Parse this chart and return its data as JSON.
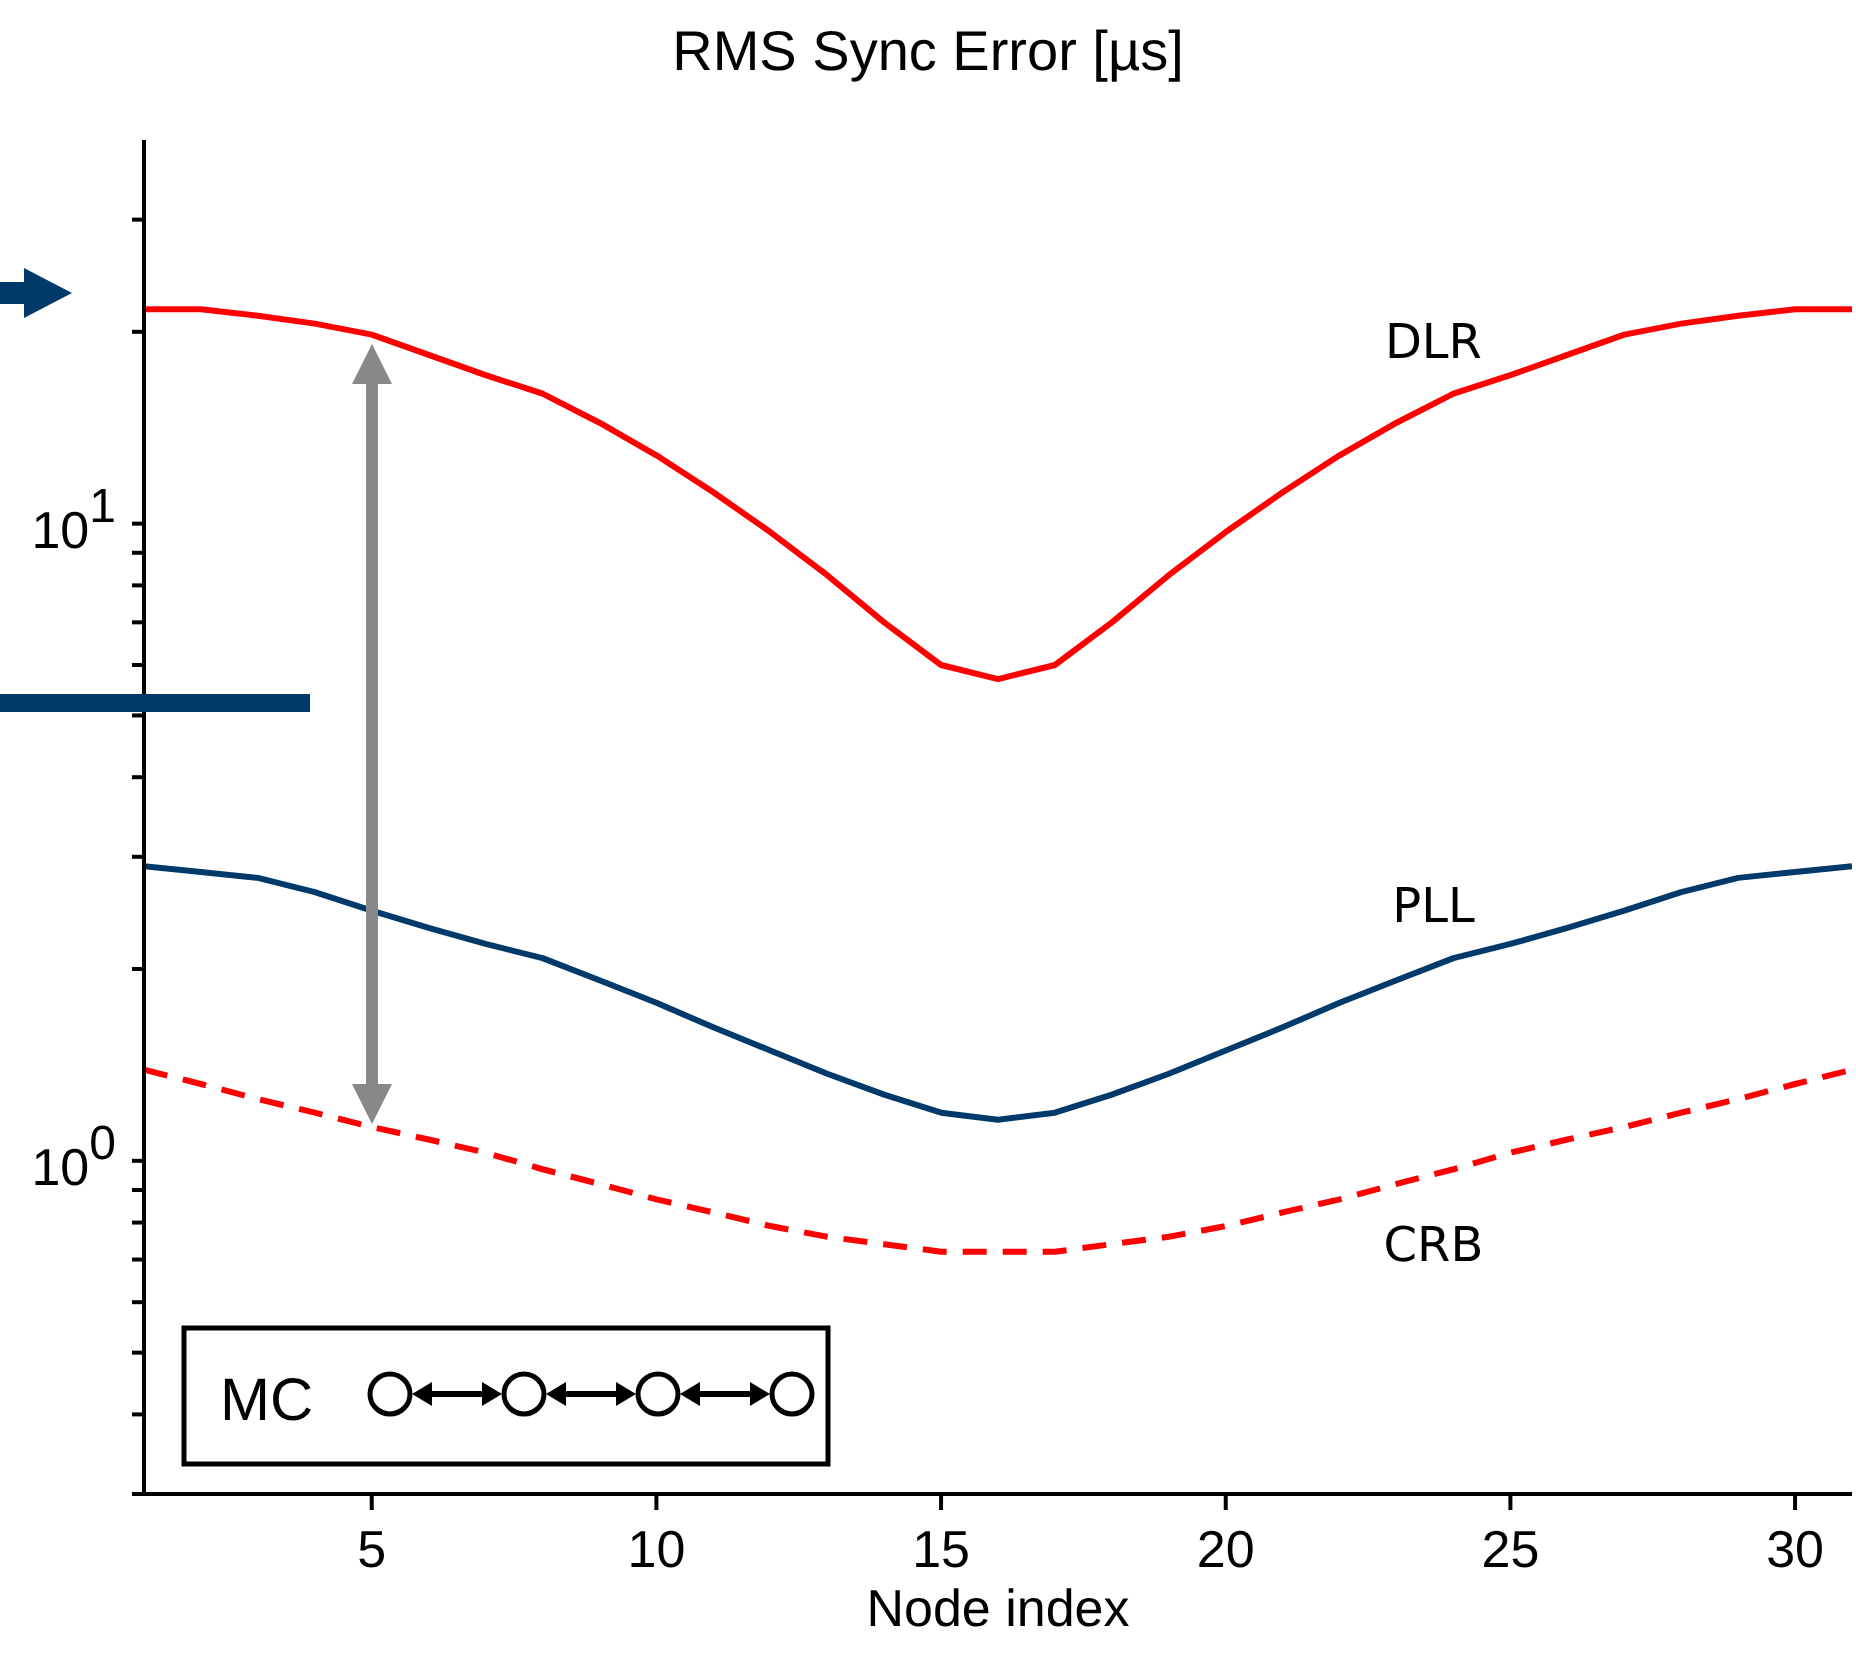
{
  "chart_data": {
    "type": "line",
    "title": "RMS Sync Error [µs]",
    "xlabel": "Node index",
    "log": "y",
    "marker": "none",
    "x": [
      1,
      2,
      3,
      4,
      5,
      6,
      7,
      8,
      9,
      10,
      11,
      12,
      13,
      14,
      15,
      16,
      17,
      18,
      19,
      20,
      21,
      22,
      23,
      24,
      25,
      26,
      27,
      28,
      29,
      30,
      31
    ],
    "xlim": [
      1,
      31
    ],
    "xticks": [
      5,
      10,
      15,
      20,
      25,
      30
    ],
    "ylim": [
      0.3,
      40
    ],
    "yticks": [
      {
        "value": 0.3,
        "label": null
      },
      {
        "value": 0.4,
        "label": null
      },
      {
        "value": 0.5,
        "label": null
      },
      {
        "value": 0.6,
        "label": null
      },
      {
        "value": 0.7,
        "label": null
      },
      {
        "value": 0.8,
        "label": null
      },
      {
        "value": 0.9,
        "label": null
      },
      {
        "value": 1,
        "label": "10$^{0}$"
      },
      {
        "value": 2,
        "label": null
      },
      {
        "value": 3,
        "label": null
      },
      {
        "value": 4,
        "label": null
      },
      {
        "value": 5,
        "label": null
      },
      {
        "value": 6,
        "label": null
      },
      {
        "value": 7,
        "label": null
      },
      {
        "value": 8,
        "label": null
      },
      {
        "value": 9,
        "label": null
      },
      {
        "value": 10,
        "label": "10$^{1}$"
      },
      {
        "value": 20,
        "label": null
      },
      {
        "value": 30,
        "label": null
      }
    ],
    "series": [
      {
        "name": "DLR",
        "color": "#ff0000",
        "line_style": "solid",
        "values": [
          21.7,
          21.7,
          21.2,
          20.6,
          19.8,
          18.4,
          17.1,
          16.0,
          14.4,
          12.8,
          11.2,
          9.7,
          8.3,
          7.0,
          6.0,
          5.7,
          6.0,
          7.0,
          8.3,
          9.7,
          11.2,
          12.8,
          14.4,
          16.0,
          17.1,
          18.4,
          19.8,
          20.6,
          21.2,
          21.7,
          21.7
        ]
      },
      {
        "name": "PLL",
        "color": "#003a6b",
        "line_style": "solid",
        "values": [
          2.9,
          2.84,
          2.78,
          2.64,
          2.47,
          2.32,
          2.19,
          2.08,
          1.92,
          1.77,
          1.62,
          1.49,
          1.37,
          1.27,
          1.19,
          1.16,
          1.19,
          1.27,
          1.37,
          1.49,
          1.62,
          1.77,
          1.92,
          2.08,
          2.19,
          2.32,
          2.47,
          2.64,
          2.78,
          2.84,
          2.9
        ]
      },
      {
        "name": "CRB",
        "color": "#ff0000",
        "line_style": "dashed",
        "values": [
          1.39,
          1.32,
          1.25,
          1.19,
          1.13,
          1.08,
          1.03,
          0.97,
          0.92,
          0.87,
          0.83,
          0.79,
          0.76,
          0.74,
          0.72,
          0.72,
          0.72,
          0.74,
          0.76,
          0.79,
          0.83,
          0.87,
          0.92,
          0.97,
          1.03,
          1.08,
          1.13,
          1.19,
          1.25,
          1.32,
          1.39
        ]
      }
    ],
    "annotations": [
      "MC"
    ]
  }
}
